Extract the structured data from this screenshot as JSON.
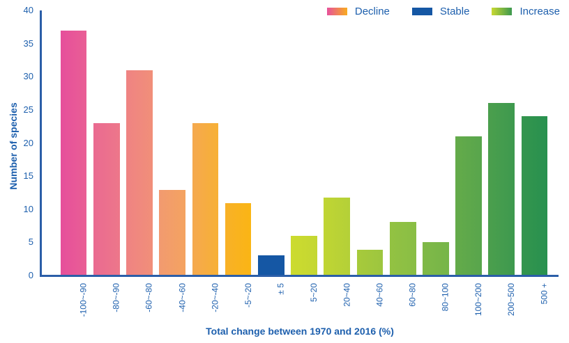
{
  "chart_data": {
    "type": "bar",
    "title": "",
    "xlabel": "Total change between 1970 and 2016 (%)",
    "ylabel": "Number of species",
    "ylim": [
      0,
      40
    ],
    "yticks": [
      0,
      5,
      10,
      15,
      20,
      25,
      30,
      35,
      40
    ],
    "grid": false,
    "legend_position": "top-right",
    "axis_color": "#2b5ea8",
    "text_color": "#1d5fad",
    "legend": [
      {
        "label": "Decline",
        "colors": [
          "#e7519c",
          "#f8ac1f"
        ]
      },
      {
        "label": "Stable",
        "colors": [
          "#1557a4",
          "#1557a4"
        ]
      },
      {
        "label": "Increase",
        "colors": [
          "#c8d832",
          "#3c984e"
        ]
      }
    ],
    "bars": [
      {
        "label": "-100~-90",
        "value": 37,
        "group": "decline",
        "colors": [
          "#e64f9b",
          "#e95f95"
        ]
      },
      {
        "label": "-80~-90",
        "value": 23,
        "group": "decline",
        "colors": [
          "#ea6a91",
          "#ed778a"
        ]
      },
      {
        "label": "-60~-80",
        "value": 31,
        "group": "decline",
        "colors": [
          "#ef8383",
          "#f18f79"
        ]
      },
      {
        "label": "-40~-60",
        "value": 12.8,
        "group": "decline",
        "colors": [
          "#f29a70",
          "#f4a360"
        ]
      },
      {
        "label": "-20~-40",
        "value": 22.9,
        "group": "decline",
        "colors": [
          "#f5a94f",
          "#f7b035"
        ]
      },
      {
        "label": "-5~-20",
        "value": 10.8,
        "group": "decline",
        "colors": [
          "#f8b128",
          "#fab514"
        ]
      },
      {
        "label": "± 5",
        "value": 2.9,
        "group": "stable",
        "colors": [
          "#1557a4",
          "#1557a4"
        ]
      },
      {
        "label": "5~20",
        "value": 5.9,
        "group": "increase",
        "colors": [
          "#ccdb2e",
          "#c4d733"
        ]
      },
      {
        "label": "20~40",
        "value": 11.7,
        "group": "increase",
        "colors": [
          "#c0d533",
          "#b4d038"
        ]
      },
      {
        "label": "40~60",
        "value": 3.8,
        "group": "increase",
        "colors": [
          "#a7ca3b",
          "#9dc63f"
        ]
      },
      {
        "label": "60~80",
        "value": 8,
        "group": "increase",
        "colors": [
          "#93c242",
          "#89be45"
        ]
      },
      {
        "label": "80~100",
        "value": 4.9,
        "group": "increase",
        "colors": [
          "#80b947",
          "#76b549"
        ]
      },
      {
        "label": "100~200",
        "value": 21,
        "group": "increase",
        "colors": [
          "#64ab4a",
          "#58a54c"
        ]
      },
      {
        "label": "200~500",
        "value": 26,
        "group": "increase",
        "colors": [
          "#4b9f4d",
          "#3e994e"
        ]
      },
      {
        "label": "500 +",
        "value": 24,
        "group": "increase",
        "colors": [
          "#34954e",
          "#28914f"
        ]
      }
    ]
  }
}
